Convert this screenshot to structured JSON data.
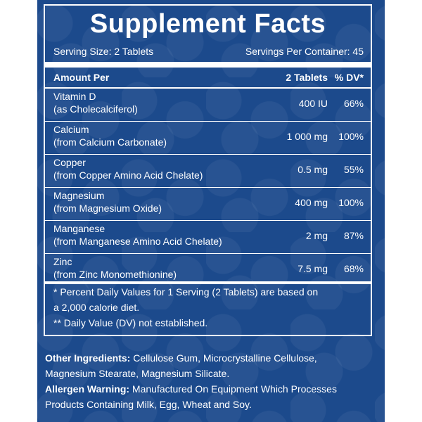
{
  "title": "Supplement Facts",
  "serving_size": "Serving Size: 2 Tablets",
  "servings_per_container": "Servings Per Container: 45",
  "header": {
    "amount_per": "Amount Per",
    "tablets": "2 Tablets",
    "dv": "% DV*"
  },
  "nutrients": [
    {
      "name": "Vitamin D",
      "source": "(as Cholecalciferol)",
      "amount": "400 IU",
      "dv": "66%"
    },
    {
      "name": "Calcium",
      "source": "(from Calcium Carbonate)",
      "amount": "1 000 mg",
      "dv": "100%"
    },
    {
      "name": "Copper",
      "source": "(from Copper Amino Acid Chelate)",
      "amount": "0.5 mg",
      "dv": "55%"
    },
    {
      "name": "Magnesium",
      "source": "(from Magnesium Oxide)",
      "amount": "400 mg",
      "dv": "100%"
    },
    {
      "name": "Manganese",
      "source": "(from Manganese Amino Acid Chelate)",
      "amount": "2 mg",
      "dv": "87%"
    },
    {
      "name": "Zinc",
      "source": "(from Zinc Monomethionine)",
      "amount": "7.5 mg",
      "dv": "68%"
    }
  ],
  "footnotes": [
    "* Percent Daily Values for 1 Serving (2 Tablets) are based on",
    "a 2,000 calorie diet.",
    "** Daily Value (DV) not established."
  ],
  "other_ingredients": {
    "label": "Other Ingredients:",
    "line1": " Cellulose Gum, Microcrystalline Cellulose,",
    "line2": "Magnesium Stearate, Magnesium Silicate."
  },
  "allergen_warning": {
    "label": "Allergen Warning:",
    "line1": " Manufactured On Equipment Which Processes",
    "line2": "Products Containing Milk, Egg, Wheat and Soy."
  },
  "colors": {
    "background": "#1c4a8c",
    "text": "#ffffff"
  }
}
